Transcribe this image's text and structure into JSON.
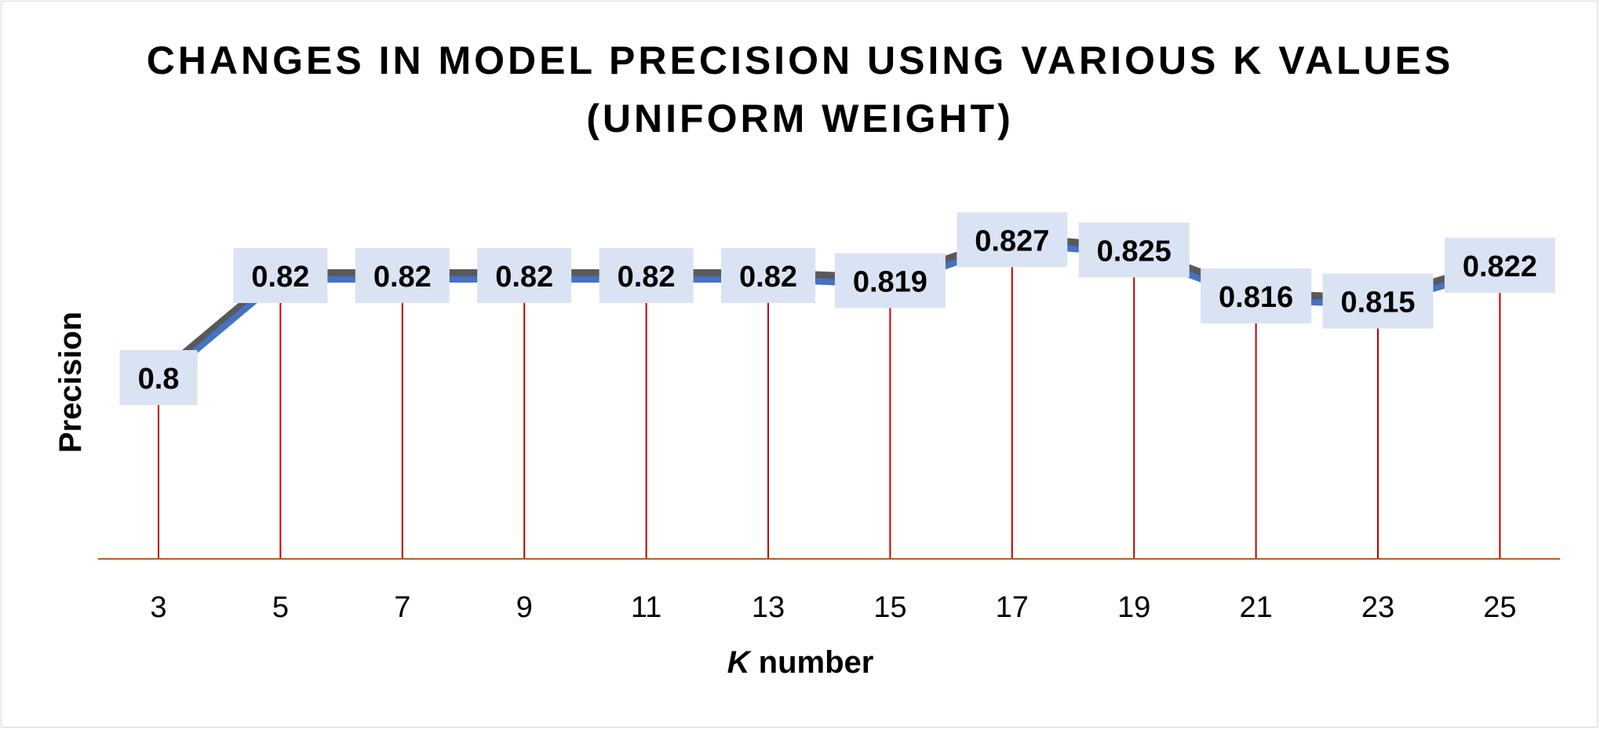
{
  "chart_data": {
    "type": "line",
    "title_line1": "CHANGES IN MODEL PRECISION USING VARIOUS K VALUES",
    "title_line2": "(UNIFORM WEIGHT)",
    "xlabel_italic": "K",
    "xlabel_rest": " number",
    "ylabel": "Precision",
    "categories": [
      "3",
      "5",
      "7",
      "9",
      "11",
      "13",
      "15",
      "17",
      "19",
      "21",
      "23",
      "25"
    ],
    "values": [
      0.8,
      0.82,
      0.82,
      0.82,
      0.82,
      0.82,
      0.819,
      0.827,
      0.825,
      0.816,
      0.815,
      0.822
    ],
    "labels": [
      "0.8",
      "0.82",
      "0.82",
      "0.82",
      "0.82",
      "0.82",
      "0.819",
      "0.827",
      "0.825",
      "0.816",
      "0.815",
      "0.822"
    ],
    "grid": false,
    "drop_lines": true,
    "colors": {
      "line": "#4472c4",
      "shadow": "#595959",
      "drop_line": "#c00000",
      "axis": "#c55a11",
      "label_bg": "#dae3f3"
    }
  }
}
